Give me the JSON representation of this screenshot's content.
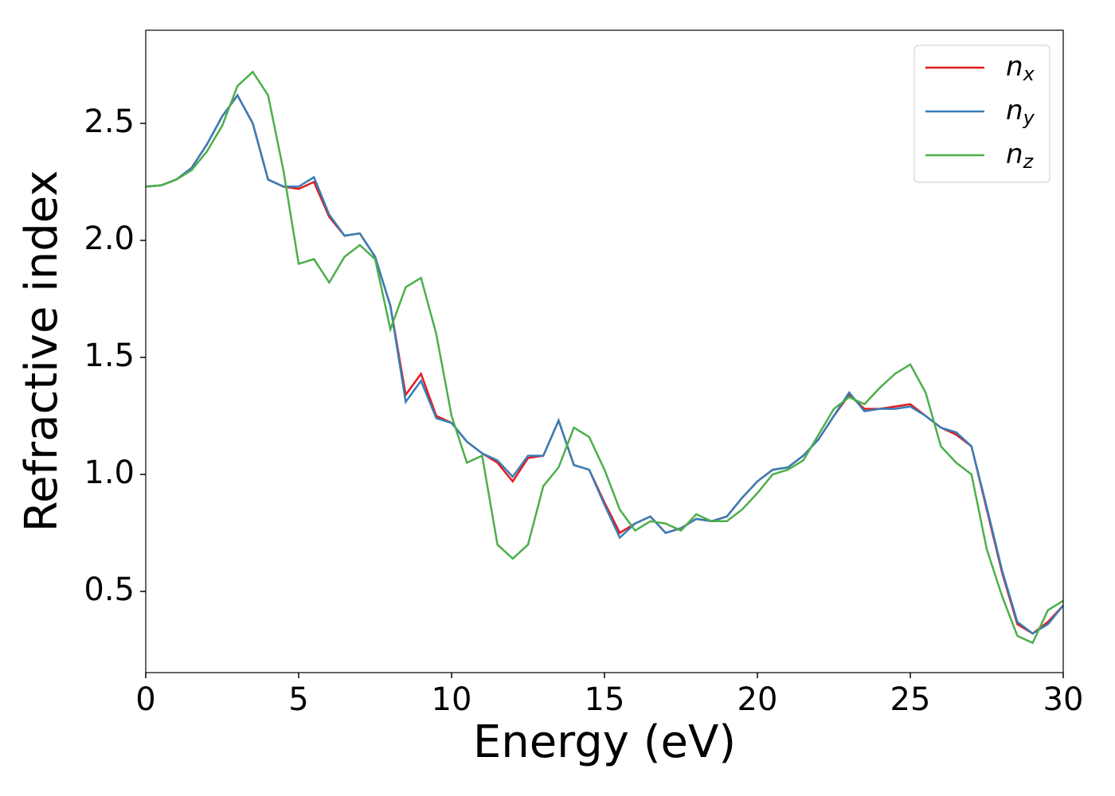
{
  "chart_data": {
    "type": "line",
    "xlabel": "Energy (eV)",
    "ylabel": "Refractive index",
    "x": [
      0,
      0.5,
      1,
      1.5,
      2,
      2.5,
      3,
      3.5,
      4,
      4.5,
      5,
      5.5,
      6,
      6.5,
      7,
      7.5,
      8,
      8.5,
      9,
      9.5,
      10,
      10.5,
      11,
      11.5,
      12,
      12.5,
      13,
      13.5,
      14,
      14.5,
      15,
      15.5,
      16,
      16.5,
      17,
      17.5,
      18,
      18.5,
      19,
      19.5,
      20,
      20.5,
      21,
      21.5,
      22,
      22.5,
      23,
      23.5,
      24,
      24.5,
      25,
      25.5,
      26,
      26.5,
      27,
      27.5,
      28,
      28.5,
      29,
      29.5,
      30
    ],
    "series": [
      {
        "name": "nx",
        "color": "#e41a1c",
        "values": [
          2.23,
          2.235,
          2.26,
          2.31,
          2.41,
          2.53,
          2.62,
          2.5,
          2.26,
          2.23,
          2.22,
          2.25,
          2.1,
          2.02,
          2.03,
          1.93,
          1.72,
          1.34,
          1.43,
          1.25,
          1.22,
          1.14,
          1.09,
          1.05,
          0.97,
          1.07,
          1.08,
          1.23,
          1.04,
          1.02,
          0.88,
          0.75,
          0.79,
          0.82,
          0.75,
          0.77,
          0.81,
          0.8,
          0.82,
          0.9,
          0.97,
          1.02,
          1.03,
          1.08,
          1.15,
          1.25,
          1.34,
          1.28,
          1.28,
          1.29,
          1.3,
          1.25,
          1.2,
          1.17,
          1.12,
          0.85,
          0.58,
          0.36,
          0.32,
          0.37,
          0.44
        ]
      },
      {
        "name": "ny",
        "color": "#377eb8",
        "values": [
          2.23,
          2.235,
          2.26,
          2.31,
          2.41,
          2.53,
          2.62,
          2.5,
          2.26,
          2.23,
          2.23,
          2.27,
          2.11,
          2.02,
          2.03,
          1.93,
          1.72,
          1.31,
          1.4,
          1.24,
          1.22,
          1.14,
          1.09,
          1.06,
          0.99,
          1.08,
          1.08,
          1.23,
          1.04,
          1.02,
          0.87,
          0.73,
          0.79,
          0.82,
          0.75,
          0.77,
          0.81,
          0.8,
          0.82,
          0.9,
          0.97,
          1.02,
          1.03,
          1.08,
          1.15,
          1.25,
          1.35,
          1.27,
          1.28,
          1.28,
          1.29,
          1.25,
          1.2,
          1.18,
          1.12,
          0.86,
          0.59,
          0.37,
          0.32,
          0.36,
          0.44
        ]
      },
      {
        "name": "nz",
        "color": "#4daf4a",
        "values": [
          2.23,
          2.235,
          2.26,
          2.3,
          2.38,
          2.49,
          2.66,
          2.72,
          2.62,
          2.3,
          1.9,
          1.92,
          1.82,
          1.93,
          1.98,
          1.92,
          1.62,
          1.8,
          1.84,
          1.6,
          1.25,
          1.05,
          1.08,
          0.7,
          0.64,
          0.7,
          0.95,
          1.03,
          1.2,
          1.16,
          1.02,
          0.85,
          0.76,
          0.8,
          0.79,
          0.76,
          0.83,
          0.8,
          0.8,
          0.85,
          0.92,
          1,
          1.02,
          1.06,
          1.17,
          1.28,
          1.33,
          1.3,
          1.37,
          1.43,
          1.47,
          1.35,
          1.12,
          1.05,
          1,
          0.68,
          0.48,
          0.31,
          0.28,
          0.42,
          0.46
        ]
      }
    ],
    "xlim": [
      0,
      30
    ],
    "xticks": [
      0,
      5,
      10,
      15,
      20,
      25,
      30
    ],
    "ylim": [
      0.153,
      2.898
    ],
    "yticks": [
      0.5,
      {
        "value": 1,
        "label": "1.0"
      },
      1.5,
      {
        "value": 2,
        "label": "2.0"
      },
      2.5
    ],
    "grid": false,
    "legend": "upper right"
  }
}
